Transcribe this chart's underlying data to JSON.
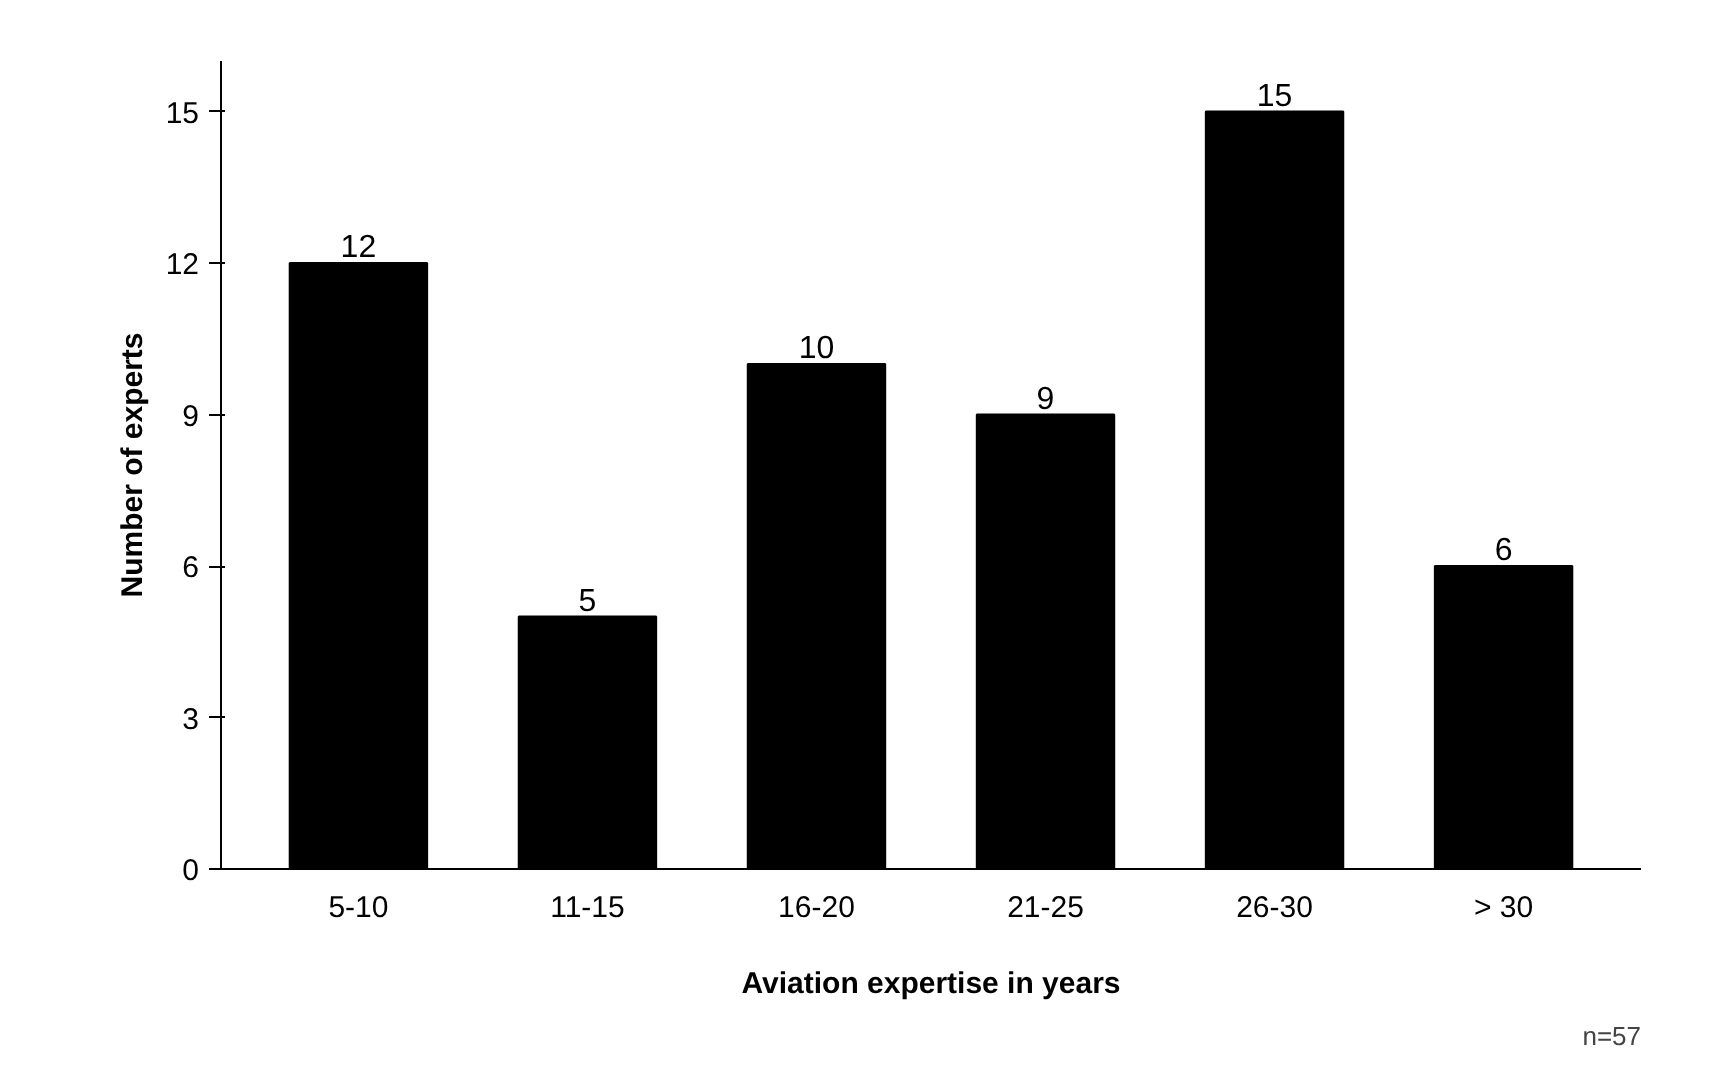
{
  "chart_data": {
    "type": "bar",
    "xlabel": "Aviation expertise in years",
    "ylabel": "Number of experts",
    "categories": [
      "5-10",
      "11-15",
      "16-20",
      "21-25",
      "26-30",
      "> 30"
    ],
    "values": [
      12,
      5,
      10,
      9,
      15,
      6
    ],
    "color": "#000000",
    "ylim": [
      0,
      16
    ],
    "yticks": [
      0,
      3,
      6,
      9,
      12,
      15
    ],
    "grid": false,
    "data_labels": true,
    "annotations": [
      "n=57"
    ]
  }
}
